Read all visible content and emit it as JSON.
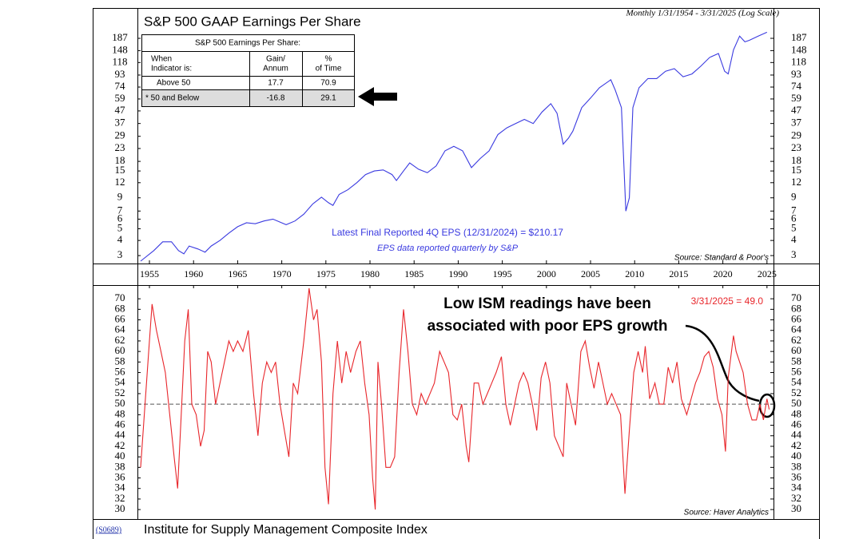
{
  "chart_id": "(S0689)",
  "chart_data": [
    {
      "type": "line",
      "title": "S&P 500 GAAP Earnings Per Share",
      "subtitle": "Monthly 1/31/1954 - 3/31/2025 (Log Scale)",
      "annotations": [
        "Latest Final Reported 4Q EPS (12/31/2024) = $210.17",
        "EPS data reported quarterly by S&P"
      ],
      "source": "Source: Standard & Poor's",
      "log_scale": true,
      "color": "#3a3ae0",
      "xlim": [
        1953.64,
        2025.74
      ],
      "xticks": [
        1955,
        1960,
        1965,
        1970,
        1975,
        1980,
        1985,
        1990,
        1995,
        2000,
        2005,
        2010,
        2015,
        2020,
        2025
      ],
      "ylim": [
        2.58,
        333
      ],
      "yticks": [
        3,
        4,
        5,
        6,
        7,
        9,
        12,
        15,
        18,
        23,
        29,
        37,
        47,
        59,
        74,
        93,
        118,
        148,
        187
      ],
      "x": [
        1954.0,
        1955.5,
        1956.5,
        1957.5,
        1958.3,
        1958.9,
        1959.5,
        1960.5,
        1961.3,
        1962,
        1963,
        1964,
        1965,
        1966,
        1967,
        1968,
        1969,
        1970.5,
        1971.5,
        1972.5,
        1973.5,
        1974.5,
        1975.3,
        1975.8,
        1976.5,
        1977.5,
        1978.5,
        1979.5,
        1980.5,
        1981.5,
        1982.5,
        1983,
        1983.8,
        1984.5,
        1985.5,
        1986.5,
        1987.5,
        1988.5,
        1989.5,
        1990.5,
        1991.5,
        1992.5,
        1993.5,
        1994.5,
        1995.5,
        1996.5,
        1997.5,
        1998.5,
        1999.5,
        2000.5,
        2001.2,
        2001.9,
        2002.5,
        2003,
        2004,
        2005,
        2006,
        2007.3,
        2007.8,
        2008.5,
        2009,
        2009.4,
        2009.8,
        2010.5,
        2011.5,
        2012.5,
        2013.5,
        2014.5,
        2015.5,
        2016.5,
        2017.5,
        2018.5,
        2019.5,
        2020.2,
        2020.6,
        2021.2,
        2021.9,
        2022.5,
        2023,
        2024,
        2025
      ],
      "values": [
        2.7,
        3.3,
        3.9,
        3.9,
        3.3,
        3.1,
        3.6,
        3.4,
        3.2,
        3.6,
        4.0,
        4.6,
        5.2,
        5.6,
        5.5,
        5.8,
        6.0,
        5.4,
        5.8,
        6.6,
        8.0,
        9.1,
        8.2,
        7.8,
        9.6,
        10.5,
        12,
        14,
        15,
        15.3,
        14,
        12.5,
        15,
        17.5,
        15.5,
        14.5,
        16.5,
        22,
        24,
        22,
        16,
        19,
        22,
        30,
        34,
        37,
        40,
        37,
        46,
        54,
        45,
        25,
        28,
        32,
        50,
        60,
        73,
        85,
        70,
        50,
        7,
        9,
        50,
        73,
        87,
        87,
        100,
        105,
        90,
        95,
        110,
        130,
        140,
        100,
        95,
        150,
        195,
        175,
        180,
        195,
        210
      ],
      "table": {
        "title": "S&P 500 Earnings Per Share:",
        "header": [
          [
            "When",
            "Indicator is:"
          ],
          [
            "Gain/",
            "Annum"
          ],
          [
            "%",
            "of Time"
          ]
        ],
        "rows": [
          [
            "Above 50",
            "17.7",
            "70.9"
          ],
          [
            "* 50 and Below",
            "-16.8",
            "29.1"
          ]
        ]
      }
    },
    {
      "type": "line",
      "title": "Institute for Supply Management Composite Index",
      "annotations": [
        [
          "Low ISM readings have been",
          "associated with poor EPS growth"
        ],
        "3/31/2025 = 49.0"
      ],
      "source": "Source: Haver Analytics",
      "color": "#e8262b",
      "hline": 50,
      "xlim": [
        1953.64,
        2025.74
      ],
      "ylim": [
        28.2,
        72.6
      ],
      "yticks": [
        30,
        32,
        34,
        36,
        38,
        40,
        42,
        44,
        46,
        48,
        50,
        52,
        54,
        56,
        58,
        60,
        62,
        64,
        66,
        68,
        70
      ],
      "x": [
        1954.0,
        1954.5,
        1955.0,
        1955.3,
        1955.8,
        1956.3,
        1956.8,
        1957.3,
        1957.8,
        1958.2,
        1958.6,
        1959.0,
        1959.4,
        1959.8,
        1960.3,
        1960.8,
        1961.2,
        1961.6,
        1962.0,
        1962.5,
        1963.0,
        1963.5,
        1964.0,
        1964.5,
        1965.0,
        1965.6,
        1966.2,
        1966.8,
        1967.3,
        1967.8,
        1968.3,
        1968.8,
        1969.3,
        1969.8,
        1970.3,
        1970.8,
        1971.3,
        1971.8,
        1972.5,
        1973.1,
        1973.6,
        1974.0,
        1974.5,
        1974.9,
        1975.3,
        1975.8,
        1976.3,
        1976.8,
        1977.3,
        1977.8,
        1978.4,
        1978.9,
        1979.4,
        1979.9,
        1980.3,
        1980.6,
        1980.9,
        1981.3,
        1981.8,
        1982.3,
        1982.8,
        1983.3,
        1983.8,
        1984.3,
        1984.8,
        1985.3,
        1985.8,
        1986.3,
        1986.8,
        1987.3,
        1987.9,
        1988.4,
        1988.9,
        1989.4,
        1989.9,
        1990.4,
        1990.9,
        1991.2,
        1991.8,
        1992.3,
        1992.8,
        1993.3,
        1993.8,
        1994.3,
        1994.9,
        1995.4,
        1995.9,
        1996.4,
        1996.9,
        1997.4,
        1997.9,
        1998.4,
        1998.9,
        1999.4,
        1999.9,
        2000.4,
        2000.9,
        2001.4,
        2001.9,
        2002.3,
        2002.8,
        2003.3,
        2003.9,
        2004.4,
        2004.9,
        2005.4,
        2005.9,
        2006.4,
        2006.9,
        2007.4,
        2007.9,
        2008.4,
        2008.9,
        2009.4,
        2009.9,
        2010.4,
        2010.9,
        2011.2,
        2011.7,
        2012.3,
        2012.8,
        2013.3,
        2013.8,
        2014.3,
        2014.8,
        2015.3,
        2015.9,
        2016.4,
        2016.9,
        2017.4,
        2017.9,
        2018.4,
        2018.9,
        2019.4,
        2019.9,
        2020.3,
        2020.6,
        2021.2,
        2021.5,
        2021.9,
        2022.3,
        2022.8,
        2023.3,
        2023.8,
        2024.2,
        2024.6,
        2025.0,
        2025.25
      ],
      "values": [
        38,
        50,
        62,
        69,
        64,
        60,
        56,
        48,
        40,
        34,
        48,
        62,
        68,
        50,
        48,
        42,
        45,
        60,
        58,
        50,
        54,
        58,
        62,
        60,
        62,
        60,
        64,
        52,
        44,
        54,
        58,
        56,
        58,
        50,
        45,
        40,
        54,
        52,
        62,
        72,
        66,
        68,
        58,
        38,
        31,
        52,
        62,
        54,
        60,
        56,
        60,
        62,
        54,
        48,
        36,
        30,
        58,
        50,
        38,
        38,
        40,
        56,
        68,
        60,
        50,
        48,
        52,
        50,
        52,
        54,
        60,
        58,
        56,
        48,
        47,
        50,
        42,
        39,
        54,
        54,
        50,
        52,
        54,
        56,
        59,
        50,
        46,
        50,
        54,
        56,
        54,
        50,
        45,
        55,
        58,
        54,
        44,
        42,
        40,
        54,
        50,
        46,
        60,
        62,
        57,
        53,
        58,
        54,
        50,
        52,
        50,
        48,
        33,
        45,
        56,
        60,
        56,
        61,
        51,
        54,
        50,
        50,
        57,
        54,
        58,
        51,
        48,
        51,
        54,
        56,
        59,
        60,
        57,
        51,
        48,
        41,
        55,
        63,
        60,
        58,
        56,
        50,
        47,
        47,
        50,
        47,
        51,
        49
      ]
    }
  ]
}
